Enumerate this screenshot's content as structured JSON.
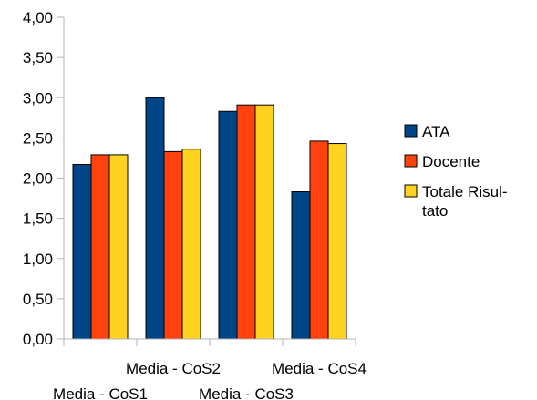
{
  "chart_data": {
    "type": "bar",
    "categories": [
      "Media - CoS1",
      "Media - CoS2",
      "Media - CoS3",
      "Media - CoS4"
    ],
    "series": [
      {
        "name": "ATA",
        "color": "#004586",
        "values": [
          2.17,
          3.0,
          2.83,
          1.83
        ]
      },
      {
        "name": "Docente",
        "color": "#ff420e",
        "values": [
          2.29,
          2.33,
          2.91,
          2.46
        ]
      },
      {
        "name": "Totale Risultato",
        "color": "#ffd320",
        "values": [
          2.29,
          2.36,
          2.91,
          2.43
        ]
      }
    ],
    "y_ticks": [
      "0,00",
      "0,50",
      "1,00",
      "1,50",
      "2,00",
      "2,50",
      "3,00",
      "3,50",
      "4,00"
    ],
    "ylim": [
      0,
      4
    ],
    "grid": false,
    "legend": "right",
    "legend_lines": {
      "ATA": [
        "ATA"
      ],
      "Docente": [
        "Docente"
      ],
      "Totale Risultato": [
        "Totale Risul-",
        "tato"
      ]
    }
  }
}
